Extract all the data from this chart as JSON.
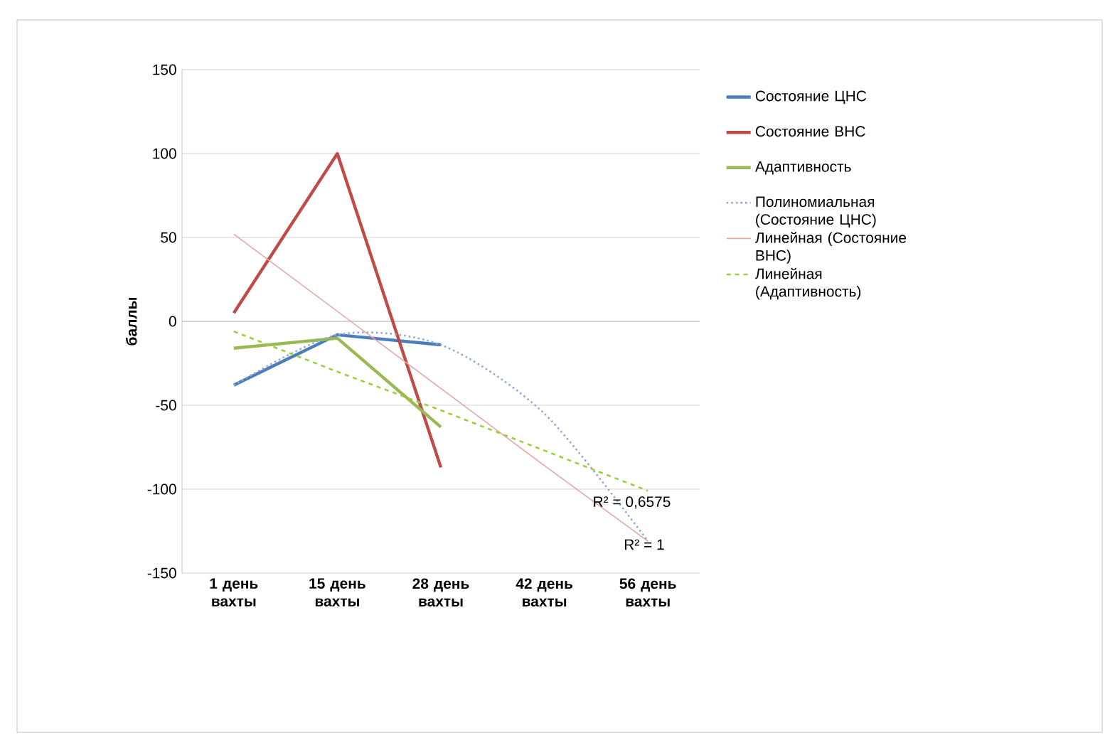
{
  "chart_data": {
    "type": "line",
    "ylabel": "баллы",
    "categories": [
      "1 день вахты",
      "15 день вахты",
      "28 день вахты",
      "42 день вахты",
      "56 день вахты"
    ],
    "series": [
      {
        "name": "Состояние ЦНС",
        "color": "#4a7ebb",
        "values": [
          -38,
          -8,
          -14,
          null,
          null
        ]
      },
      {
        "name": "Состояние ВНС",
        "color": "#be4b48",
        "values": [
          5,
          100,
          -87,
          null,
          null
        ]
      },
      {
        "name": "Адаптивность",
        "color": "#98b954",
        "values": [
          -16,
          -10,
          -63,
          null,
          null
        ]
      },
      {
        "name": "Полиномиальная (Состояние ЦНС)",
        "color": "#8fa9d6",
        "line_style": "dotted",
        "values": [
          -38,
          -8,
          -14,
          -55,
          -131
        ]
      },
      {
        "name": "Линейная (Состояние ВНС)",
        "color": "#e6a6a6",
        "line_style": "solid",
        "values": [
          52,
          6,
          -40,
          -86,
          -131
        ]
      },
      {
        "name": "Линейная (Адаптивность)",
        "color": "#9bcf3f",
        "line_style": "dashed",
        "values": [
          -6,
          -30,
          -53,
          -77,
          -101
        ]
      }
    ],
    "ylim": [
      -150,
      150
    ],
    "yticks": [
      -150,
      -100,
      -50,
      0,
      50,
      100,
      150
    ],
    "grid": "y",
    "legend": "right",
    "marker": "none",
    "annotations": [
      "R² = 0,6575",
      "R² = 1"
    ]
  }
}
